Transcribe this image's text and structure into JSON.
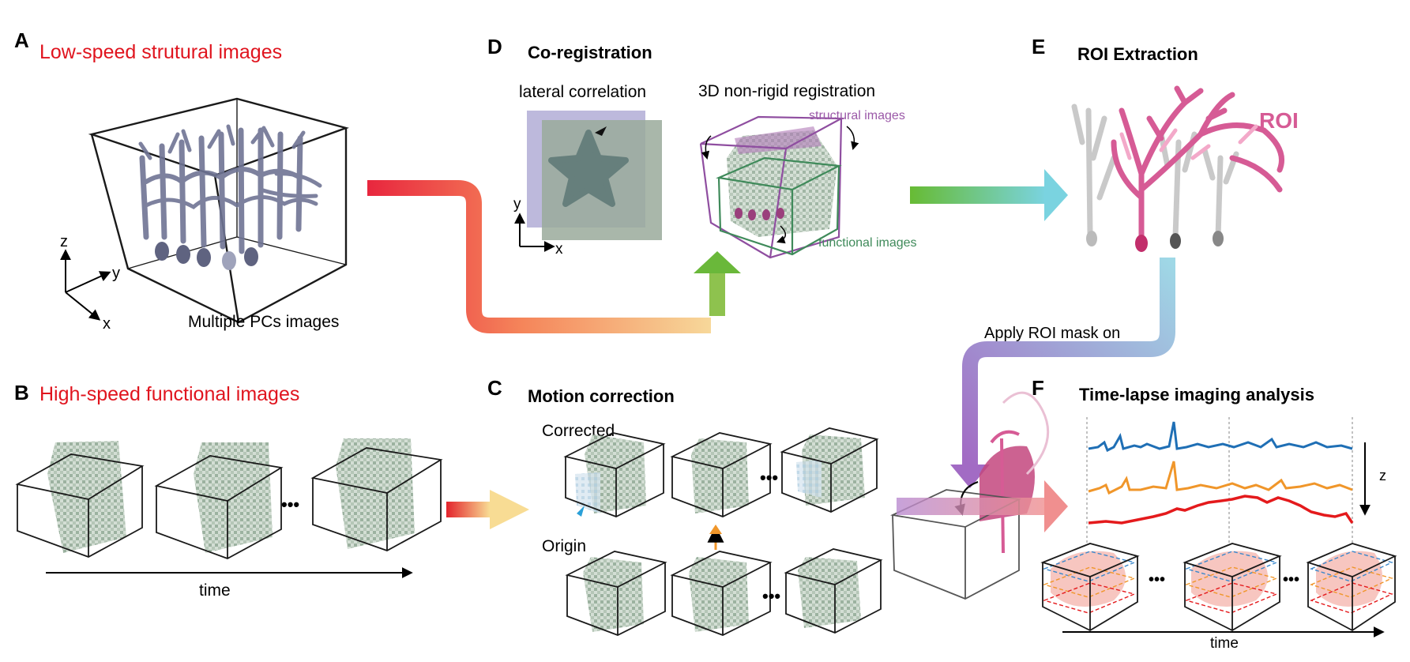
{
  "panels": {
    "A": {
      "letter": "A",
      "title": "Low-speed strutural images",
      "caption": "Multiple PCs images"
    },
    "B": {
      "letter": "B",
      "title": "High-speed functional images",
      "axis_label": "time"
    },
    "C": {
      "letter": "C",
      "title": "Motion correction",
      "corrected": "Corrected",
      "origin": "Origin",
      "ellipsis": "•••"
    },
    "D": {
      "letter": "D",
      "title": "Co-registration",
      "lateral": "lateral correlation",
      "nonrigid": "3D non-rigid registration",
      "structural": "structural images",
      "functional": "functional images"
    },
    "E": {
      "letter": "E",
      "title": "ROI Extraction",
      "roi": "ROI",
      "apply": "Apply ROI mask on"
    },
    "F": {
      "letter": "F",
      "title": "Time-lapse imaging analysis",
      "axis_label": "time",
      "z_label": "z",
      "ellipsis": "•••"
    }
  },
  "axes": {
    "x": "x",
    "y": "y",
    "z": "z"
  },
  "colors": {
    "title_red": "#e0141e",
    "structural": "#9b59a8",
    "functional": "#3f8a5a",
    "roi_pink": "#d65b95",
    "trace_blue": "#1f6fb5",
    "trace_orange": "#f0962a",
    "trace_red": "#e41a1c"
  }
}
